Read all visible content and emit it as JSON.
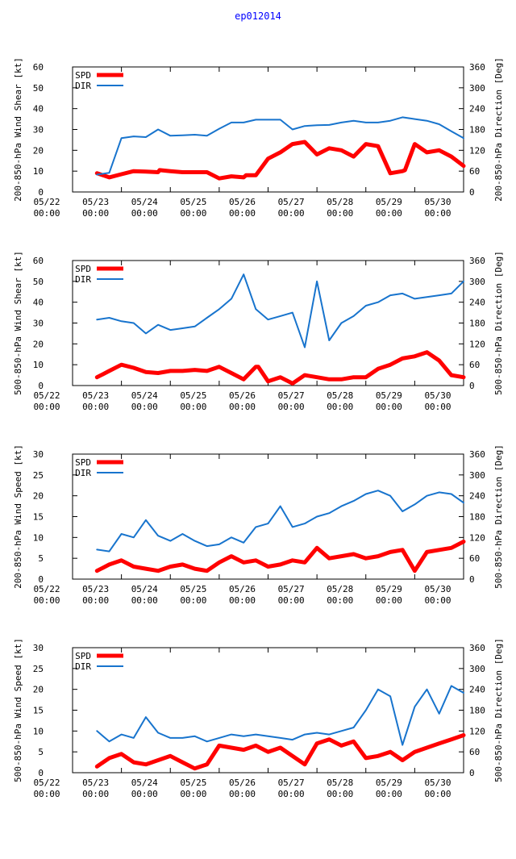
{
  "page": {
    "title": "ep012014",
    "title_color": "#0000ff"
  },
  "colors": {
    "spd": "#ff0000",
    "dir": "#1874cd",
    "axis": "#000000"
  },
  "chart_data": [
    {
      "type": "line",
      "name": "panel-200-850-wind-shear",
      "ylabel_left": "200-850-hPa Wind Shear [kt]",
      "ylabel_right": "200-850-hPa Direction [Deg]",
      "ylim_left": [
        0,
        60
      ],
      "ylim_right": [
        0,
        360
      ],
      "yticks_left": [
        "0",
        "10",
        "20",
        "30",
        "40",
        "50",
        "60"
      ],
      "yticks_right": [
        "0",
        "60",
        "120",
        "180",
        "240",
        "300",
        "360"
      ],
      "xlim_days": [
        0,
        8
      ],
      "x_tick_dates": [
        "05/22",
        "05/23",
        "05/24",
        "05/25",
        "05/26",
        "05/27",
        "05/28",
        "05/29",
        "05/30"
      ],
      "x_tick_times": [
        "00:00",
        "00:00",
        "00:00",
        "00:00",
        "00:00",
        "00:00",
        "00:00",
        "00:00",
        "00:00"
      ],
      "legend": {
        "spd": "SPD",
        "dir": "DIR",
        "position": "top-left"
      },
      "series": [
        {
          "name": "SPD",
          "axis": "left",
          "x": [
            0.5,
            0.75,
            1.0,
            1.25,
            1.5,
            1.75,
            1.78,
            2.0,
            2.25,
            2.5,
            2.75,
            3.0,
            3.25,
            3.5,
            3.55,
            3.75,
            4.0,
            4.25,
            4.5,
            4.75,
            5.0,
            5.25,
            5.5,
            5.75,
            6.0,
            6.25,
            6.5,
            6.75,
            6.8,
            7.0,
            7.25,
            7.5,
            7.75,
            8.0
          ],
          "values": [
            9,
            7,
            8.5,
            10,
            9.8,
            9.5,
            10.5,
            10,
            9.5,
            9.5,
            9.5,
            6.5,
            7.5,
            7,
            8,
            8,
            16,
            19,
            23,
            24,
            18,
            21,
            20,
            17,
            23,
            22,
            9,
            10,
            10.5,
            23,
            19,
            20,
            17,
            12.5
          ]
        },
        {
          "name": "DIR",
          "axis": "right",
          "x": [
            0.5,
            0.75,
            1.0,
            1.25,
            1.5,
            1.75,
            2.0,
            2.25,
            2.5,
            2.75,
            3.0,
            3.25,
            3.5,
            3.75,
            4.0,
            4.25,
            4.5,
            4.75,
            5.0,
            5.25,
            5.5,
            5.75,
            6.0,
            6.25,
            6.5,
            6.75,
            7.0,
            7.25,
            7.5,
            7.75,
            8.0
          ],
          "values": [
            50,
            55,
            155,
            160,
            158,
            180,
            162,
            163,
            165,
            162,
            182,
            200,
            200,
            208,
            208,
            208,
            180,
            190,
            192,
            193,
            200,
            205,
            200,
            200,
            205,
            215,
            210,
            205,
            195,
            175,
            155
          ]
        }
      ]
    },
    {
      "type": "line",
      "name": "panel-500-850-wind-shear",
      "ylabel_left": "500-850-hPa Wind Shear [kt]",
      "ylabel_right": "500-850-hPa Direction [Deg]",
      "ylim_left": [
        0,
        60
      ],
      "ylim_right": [
        0,
        360
      ],
      "yticks_left": [
        "0",
        "10",
        "20",
        "30",
        "40",
        "50",
        "60"
      ],
      "yticks_right": [
        "0",
        "60",
        "120",
        "180",
        "240",
        "300",
        "360"
      ],
      "xlim_days": [
        0,
        8
      ],
      "x_tick_dates": [
        "05/22",
        "05/23",
        "05/24",
        "05/25",
        "05/26",
        "05/27",
        "05/28",
        "05/29",
        "05/30"
      ],
      "x_tick_times": [
        "00:00",
        "00:00",
        "00:00",
        "00:00",
        "00:00",
        "00:00",
        "00:00",
        "00:00",
        "00:00"
      ],
      "legend": {
        "spd": "SPD",
        "dir": "DIR",
        "position": "top-left"
      },
      "series": [
        {
          "name": "SPD",
          "axis": "left",
          "x": [
            0.5,
            0.75,
            1.0,
            1.25,
            1.5,
            1.75,
            2.0,
            2.25,
            2.5,
            2.75,
            3.0,
            3.25,
            3.5,
            3.75,
            3.8,
            4.0,
            4.25,
            4.5,
            4.75,
            5.0,
            5.25,
            5.5,
            5.75,
            6.0,
            6.25,
            6.5,
            6.75,
            7.0,
            7.25,
            7.5,
            7.75,
            8.0
          ],
          "values": [
            4,
            7,
            10,
            8.5,
            6.5,
            6,
            7,
            7,
            7.5,
            7,
            9,
            6,
            3,
            9,
            9,
            2,
            4,
            1,
            5,
            4,
            3,
            3,
            4,
            4,
            8,
            10,
            13,
            14,
            16,
            12,
            5,
            4
          ]
        },
        {
          "name": "DIR",
          "axis": "right",
          "x": [
            0.5,
            0.75,
            1.0,
            1.25,
            1.5,
            1.75,
            2.0,
            2.25,
            2.5,
            2.75,
            3.0,
            3.25,
            3.5,
            3.75,
            4.0,
            4.25,
            4.5,
            4.75,
            5.0,
            5.25,
            5.5,
            5.75,
            6.0,
            6.25,
            6.5,
            6.75,
            7.0,
            7.25,
            7.5,
            7.75,
            8.0
          ],
          "values": [
            190,
            195,
            185,
            180,
            150,
            175,
            160,
            165,
            170,
            195,
            220,
            250,
            320,
            220,
            190,
            200,
            210,
            110,
            300,
            130,
            180,
            200,
            230,
            240,
            260,
            265,
            250,
            255,
            260,
            265,
            300
          ]
        }
      ]
    },
    {
      "type": "line",
      "name": "panel-200-850-wind-speed",
      "ylabel_left": "200-850-hPa Wind Speed [kt]",
      "ylabel_right": "500-850-hPa Direction [Deg]",
      "ylim_left": [
        0,
        30
      ],
      "ylim_right": [
        0,
        360
      ],
      "yticks_left": [
        "0",
        "5",
        "10",
        "15",
        "20",
        "25",
        "30"
      ],
      "yticks_right": [
        "0",
        "60",
        "120",
        "180",
        "240",
        "300",
        "360"
      ],
      "xlim_days": [
        0,
        8
      ],
      "x_tick_dates": [
        "05/22",
        "05/23",
        "05/24",
        "05/25",
        "05/26",
        "05/27",
        "05/28",
        "05/29",
        "05/30"
      ],
      "x_tick_times": [
        "00:00",
        "00:00",
        "00:00",
        "00:00",
        "00:00",
        "00:00",
        "00:00",
        "00:00",
        "00:00"
      ],
      "legend": {
        "spd": "SPD",
        "dir": "DIR",
        "position": "top-left"
      },
      "series": [
        {
          "name": "SPD",
          "axis": "left",
          "x": [
            0.5,
            0.75,
            1.0,
            1.25,
            1.5,
            1.75,
            2.0,
            2.25,
            2.5,
            2.75,
            3.0,
            3.25,
            3.5,
            3.75,
            4.0,
            4.25,
            4.5,
            4.75,
            5.0,
            5.25,
            5.5,
            5.75,
            6.0,
            6.25,
            6.5,
            6.75,
            7.0,
            7.25,
            7.5,
            7.75,
            8.0
          ],
          "values": [
            2,
            3.5,
            4.5,
            3,
            2.5,
            2,
            3,
            3.5,
            2.5,
            2,
            4,
            5.5,
            4,
            4.5,
            3,
            3.5,
            4.5,
            4,
            7.5,
            5,
            5.5,
            6,
            5,
            5.5,
            6.5,
            7,
            2,
            6.5,
            7,
            7.5,
            9
          ]
        },
        {
          "name": "DIR",
          "axis": "right",
          "x": [
            0.5,
            0.75,
            1.0,
            1.25,
            1.5,
            1.75,
            2.0,
            2.25,
            2.5,
            2.75,
            3.0,
            3.25,
            3.5,
            3.75,
            4.0,
            4.25,
            4.5,
            4.75,
            5.0,
            5.25,
            5.5,
            5.75,
            6.0,
            6.25,
            6.5,
            6.75,
            7.0,
            7.25,
            7.5,
            7.75,
            8.0
          ],
          "values": [
            85,
            80,
            130,
            120,
            170,
            125,
            110,
            130,
            110,
            95,
            100,
            120,
            105,
            150,
            160,
            210,
            150,
            160,
            180,
            190,
            210,
            225,
            245,
            255,
            240,
            195,
            215,
            240,
            250,
            245,
            220
          ]
        }
      ]
    },
    {
      "type": "line",
      "name": "panel-500-850-wind-speed",
      "ylabel_left": "500-850-hPa Wind Speed [kt]",
      "ylabel_right": "500-850-hPa Direction [Deg]",
      "ylim_left": [
        0,
        30
      ],
      "ylim_right": [
        0,
        360
      ],
      "yticks_left": [
        "0",
        "5",
        "10",
        "15",
        "20",
        "25",
        "30"
      ],
      "yticks_right": [
        "0",
        "60",
        "120",
        "180",
        "240",
        "300",
        "360"
      ],
      "xlim_days": [
        0,
        8
      ],
      "x_tick_dates": [
        "05/22",
        "05/23",
        "05/24",
        "05/25",
        "05/26",
        "05/27",
        "05/28",
        "05/29",
        "05/30"
      ],
      "x_tick_times": [
        "00:00",
        "00:00",
        "00:00",
        "00:00",
        "00:00",
        "00:00",
        "00:00",
        "00:00",
        "00:00"
      ],
      "legend": {
        "spd": "SPD",
        "dir": "DIR",
        "position": "top-left"
      },
      "series": [
        {
          "name": "SPD",
          "axis": "left",
          "x": [
            0.5,
            0.75,
            1.0,
            1.25,
            1.5,
            1.75,
            2.0,
            2.25,
            2.5,
            2.75,
            3.0,
            3.25,
            3.5,
            3.75,
            4.0,
            4.25,
            4.5,
            4.75,
            5.0,
            5.25,
            5.5,
            5.75,
            6.0,
            6.25,
            6.5,
            6.75,
            7.0,
            7.25,
            7.5,
            7.75,
            8.0
          ],
          "values": [
            1.5,
            3.5,
            4.5,
            2.5,
            2,
            3,
            4,
            2.5,
            1,
            2,
            6.5,
            6,
            5.5,
            6.5,
            5,
            6,
            4,
            2,
            7,
            8,
            6.5,
            7.5,
            3.5,
            4,
            5,
            3,
            5,
            6,
            7,
            8,
            9
          ]
        },
        {
          "name": "DIR",
          "axis": "right",
          "x": [
            0.5,
            0.75,
            1.0,
            1.25,
            1.5,
            1.75,
            2.0,
            2.25,
            2.5,
            2.75,
            3.0,
            3.25,
            3.5,
            3.75,
            4.0,
            4.25,
            4.5,
            4.75,
            5.0,
            5.25,
            5.5,
            5.75,
            6.0,
            6.25,
            6.5,
            6.75,
            7.0,
            7.25,
            7.5,
            7.75,
            8.0
          ],
          "values": [
            120,
            90,
            110,
            100,
            160,
            115,
            100,
            100,
            105,
            90,
            100,
            110,
            105,
            110,
            105,
            100,
            95,
            110,
            115,
            110,
            120,
            130,
            180,
            240,
            220,
            80,
            190,
            240,
            170,
            250,
            230
          ]
        }
      ]
    }
  ]
}
